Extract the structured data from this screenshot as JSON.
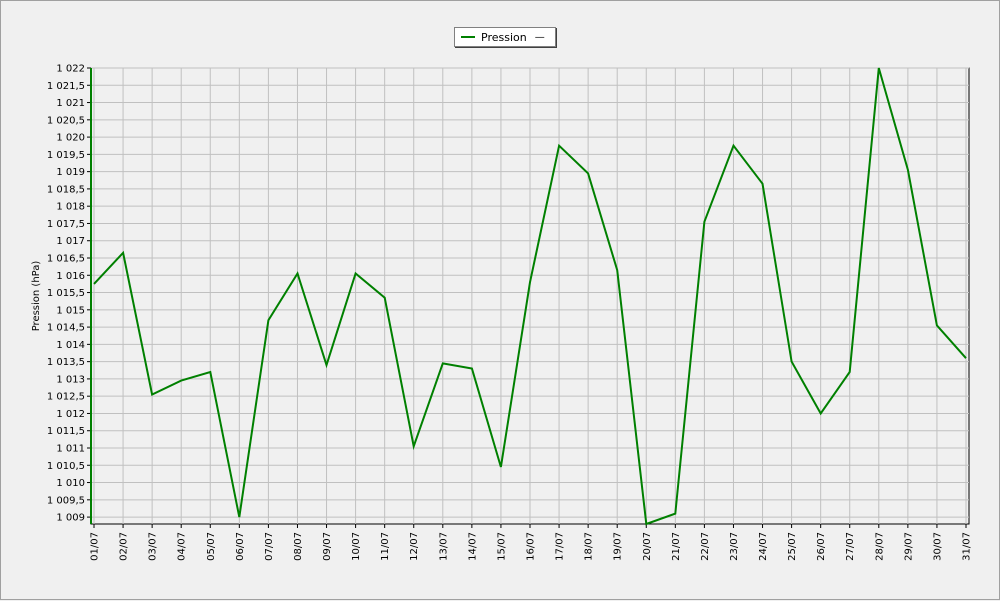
{
  "chart_data": {
    "type": "line",
    "title": "",
    "xlabel": "",
    "ylabel": "Pression (hPa)",
    "ylim": [
      1008.8,
      1022.0
    ],
    "yticks": [
      1009,
      1009.5,
      1010,
      1010.5,
      1011,
      1011.5,
      1012,
      1012.5,
      1013,
      1013.5,
      1014,
      1014.5,
      1015,
      1015.5,
      1016,
      1016.5,
      1017,
      1017.5,
      1018,
      1018.5,
      1019,
      1019.5,
      1020,
      1020.5,
      1021,
      1021.5,
      1022
    ],
    "ytick_labels": [
      "1 009",
      "1 009,5",
      "1 010",
      "1 010,5",
      "1 011",
      "1 011,5",
      "1 012",
      "1 012,5",
      "1 013",
      "1 013,5",
      "1 014",
      "1 014,5",
      "1 015",
      "1 015,5",
      "1 016",
      "1 016,5",
      "1 017",
      "1 017,5",
      "1 018",
      "1 018,5",
      "1 019",
      "1 019,5",
      "1 020",
      "1 020,5",
      "1 021",
      "1 021,5",
      "1 022"
    ],
    "categories": [
      "01/07",
      "02/07",
      "03/07",
      "04/07",
      "05/07",
      "06/07",
      "07/07",
      "08/07",
      "09/07",
      "10/07",
      "11/07",
      "12/07",
      "13/07",
      "14/07",
      "15/07",
      "16/07",
      "17/07",
      "18/07",
      "19/07",
      "20/07",
      "21/07",
      "22/07",
      "23/07",
      "24/07",
      "25/07",
      "26/07",
      "27/07",
      "28/07",
      "29/07",
      "30/07",
      "31/07"
    ],
    "series": [
      {
        "name": "Pression",
        "color": "#008000",
        "values": [
          1015.75,
          1016.65,
          1012.55,
          1012.95,
          1013.2,
          1009.0,
          1014.7,
          1016.05,
          1013.4,
          1016.05,
          1015.35,
          1011.05,
          1013.45,
          1013.3,
          1010.45,
          1015.8,
          1019.75,
          1018.95,
          1016.15,
          1008.8,
          1009.1,
          1017.55,
          1019.75,
          1018.65,
          1013.5,
          1012.0,
          1013.2,
          1022.0,
          1019.05,
          1014.55,
          1013.6
        ]
      }
    ],
    "grid": true,
    "legend_position": "top-center"
  },
  "legend": {
    "label": "Pression",
    "dash": "—"
  }
}
